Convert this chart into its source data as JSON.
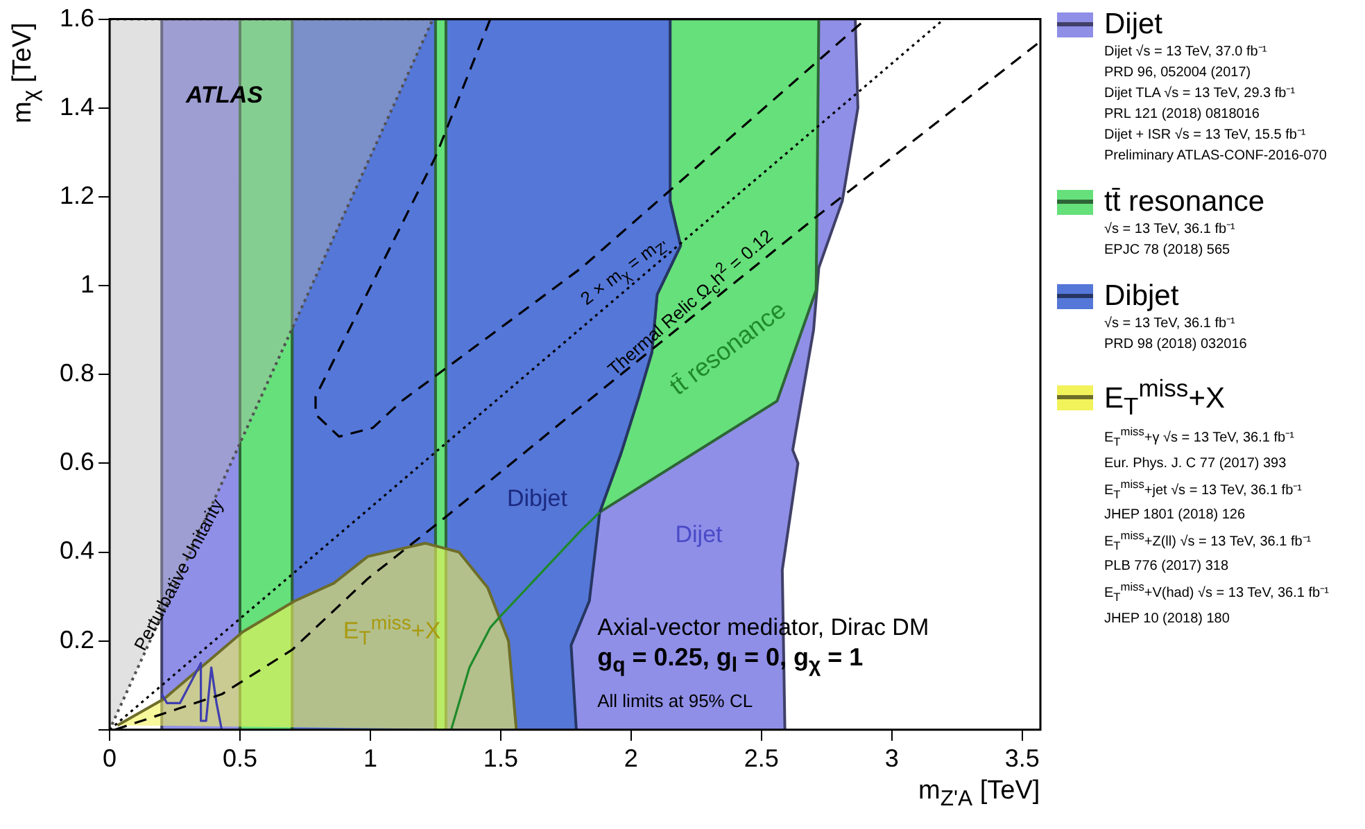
{
  "chart_data": {
    "type": "area",
    "xlabel": "m$_{Z'A}$ [TeV]",
    "ylabel": "m$_{χ}$ [TeV]",
    "xlim": [
      0,
      3.57
    ],
    "ylim": [
      0,
      1.6
    ],
    "xticks": [
      0,
      0.5,
      1,
      1.5,
      2,
      2.5,
      3,
      3.5
    ],
    "yticks": [
      {
        "value": 0,
        "label": null
      },
      0.2,
      0.4,
      0.6,
      0.8,
      1,
      1.2,
      1.4,
      1.6
    ],
    "grid": false,
    "legend": "right",
    "marker": "none",
    "series": [
      {
        "name": "Dijet\nDijet √s = 13 TeV, 37.0 fb⁻¹\nPRD 96, 052004 (2017)\nDijet TLA √s = 13 TeV, 29.3 fb⁻¹\nPRL 121 (2018) 0818016\nDijet + ISR √s = 13 TeV, 15.5 fb⁻¹\nPreliminary ATLAS-CONF-2016-070",
        "color": "#8f8fe8",
        "x": [
          0.2,
          0.2,
          2.86,
          2.87,
          2.81,
          2.72,
          2.7,
          2.62,
          2.64,
          2.58,
          2.59
        ],
        "values": [
          0,
          1.6,
          1.6,
          1.4,
          1.19,
          1.04,
          0.9,
          0.63,
          0.6,
          0.36,
          0
        ]
      },
      {
        "name": "tt̄ resonance\n√s = 13 TeV, 36.1 fb⁻¹\nEPJC 78 (2018) 565",
        "color": "#66e07a",
        "x": [
          2.15,
          2.72,
          2.71,
          2.56,
          1.88,
          1.96,
          2.03,
          2.08,
          2.1,
          2.19,
          2.15
        ],
        "values": [
          1.6,
          1.6,
          0.99,
          0.74,
          0.49,
          0.62,
          0.75,
          0.85,
          0.98,
          1.09,
          1.19
        ]
      },
      {
        "name": "Dibjet\n√s = 13 TeV, 36.1 fb⁻¹\nPRD 98 (2018) 032016",
        "color": "#5577d8",
        "x": [
          0.7,
          0.7,
          2.15,
          2.15,
          2.19,
          2.1,
          2.08,
          2.03,
          1.96,
          1.88,
          1.84,
          1.77,
          1.79
        ],
        "values": [
          0,
          1.6,
          1.6,
          1.19,
          1.09,
          0.98,
          0.85,
          0.75,
          0.62,
          0.49,
          0.29,
          0.19,
          0
        ]
      },
      {
        "color": "#66e07a",
        "x": [
          0.5,
          0.5,
          0.7,
          0.7
        ],
        "values": [
          0,
          1.6,
          1.6,
          0
        ]
      },
      {
        "color": "#66e07a",
        "x": [
          1.25,
          1.25,
          1.29,
          1.29
        ],
        "values": [
          0,
          1.6,
          1.6,
          0
        ]
      },
      {
        "name": "E$_{T}$$^{miss}$+X\nE$_{T}$$^{miss}$+γ √s = 13 TeV, 36.1 fb⁻¹\nEur. Phys. J. C 77 (2017) 393\nE$_{T}$$^{miss}$+jet √s = 13 TeV, 36.1 fb⁻¹\nJHEP 1801 (2018) 126\nE$_{T}$$^{miss}$+Z(ll) √s = 13 TeV, 36.1 fb⁻¹\nPLB 776 (2017) 318\nE$_{T}$$^{miss}$+V(had) √s = 13 TeV, 36.1 fb⁻¹\nJHEP 10 (2018) 180",
        "color": "#f2f25a",
        "x": [
          0.03,
          0.21,
          0.51,
          0.71,
          0.86,
          0.99,
          1.21,
          1.34,
          1.45,
          1.53,
          1.56
        ],
        "values": [
          0.01,
          0.07,
          0.22,
          0.29,
          0.33,
          0.39,
          0.42,
          0.4,
          0.32,
          0.2,
          0
        ]
      },
      {
        "type": "line",
        "color": "#3f3fb0",
        "x": [
          0.2,
          0.22,
          0.27,
          0.35,
          0.35,
          0.37,
          0.39,
          0.41,
          0.43
        ],
        "values": [
          0.08,
          0.06,
          0.06,
          0.15,
          0.02,
          0.02,
          0.14,
          0.06,
          0
        ]
      },
      {
        "type": "line",
        "color": "#1f8a2a",
        "x": [
          1.31,
          1.38,
          1.46,
          1.49,
          1.81,
          1.88
        ],
        "values": [
          0,
          0.14,
          0.23,
          0.25,
          0.45,
          0.49
        ]
      },
      {
        "color": "#b4b4b4",
        "line_style": "dotted",
        "x": [
          0,
          1.24,
          0
        ],
        "values": [
          1.6,
          1.6,
          0
        ]
      },
      {
        "type": "line",
        "color": "#000000",
        "line_style": "dotted",
        "x": [
          0,
          3.2
        ],
        "values": [
          0,
          1.6
        ]
      },
      {
        "type": "line",
        "color": "#000000",
        "line_style": "dashed",
        "x": [
          1.46,
          1.25,
          0.79,
          0.79,
          0.88,
          1.01,
          1.12,
          1.81,
          2.9
        ],
        "values": [
          1.6,
          1.29,
          0.75,
          0.71,
          0.66,
          0.68,
          0.74,
          1.04,
          1.6
        ]
      },
      {
        "type": "line",
        "color": "#000000",
        "line_style": "dashed",
        "x": [
          0.02,
          0.43,
          0.7,
          0.99,
          1.27,
          1.75,
          2.7,
          3.57
        ],
        "values": [
          0,
          0.08,
          0.18,
          0.34,
          0.47,
          0.7,
          1.15,
          1.55
        ]
      }
    ],
    "annotations": [
      "ATLAS",
      "Perturbative Unitarity",
      "2 × m$_{χ}$ = m$_{Z'}$",
      "Thermal Relic Ω$_{c}$h$^{2}$ = 0.12",
      "tt̄ resonance",
      "Dibjet",
      "Dijet",
      "E$_{T}$$^{miss}$+X",
      "Axial-vector mediator, Dirac DM",
      "g$_{q}$ = 0.25, g$_{l}$ = 0, g$_{χ}$ = 1",
      "All limits at 95% CL"
    ]
  }
}
